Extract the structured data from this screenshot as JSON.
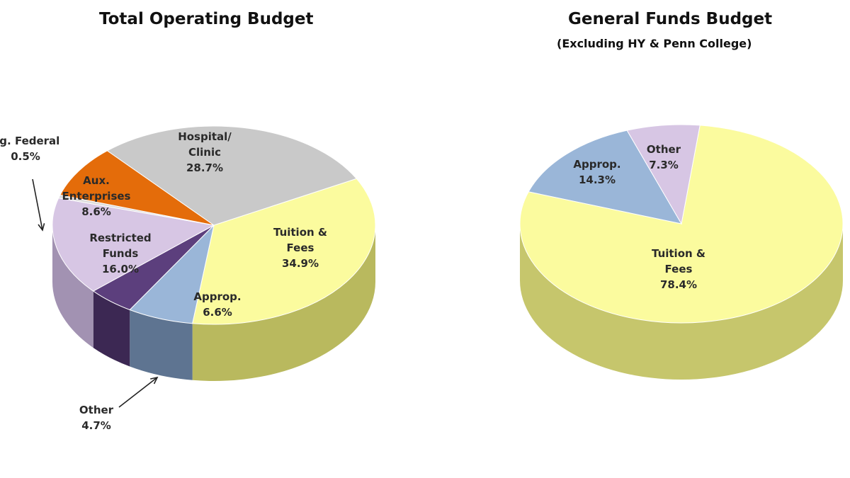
{
  "chart_data": [
    {
      "type": "pie",
      "title": "Total Operating Budget",
      "subtitle": "",
      "slices": [
        {
          "label": [
            "Tuition &",
            "Fees",
            "34.9%"
          ],
          "value": 34.9,
          "color": "#fbfb9e",
          "side": "#b9b95e"
        },
        {
          "label": [
            "Approp.",
            "6.6%"
          ],
          "value": 6.6,
          "color": "#9ab6d8",
          "side": "#5e7491"
        },
        {
          "label": [
            "Other",
            "4.7%"
          ],
          "value": 4.7,
          "color": "#5c3f7d",
          "side": "#3c2853"
        },
        {
          "label": [
            "Restricted",
            "Funds",
            "16.0%"
          ],
          "value": 16.0,
          "color": "#d7c6e4",
          "side": "#a292b2"
        },
        {
          "label": [
            "Ag. Federal",
            "0.5%"
          ],
          "value": 0.5,
          "color": "#dcdcdc",
          "side": "#a6a6a6"
        },
        {
          "label": [
            "Aux.",
            "Enterprises",
            "8.6%"
          ],
          "value": 8.6,
          "color": "#e46c0a",
          "side": "#a04908"
        },
        {
          "label": [
            "Hospital/",
            "Clinic",
            "28.7%"
          ],
          "value": 28.7,
          "color": "#c9c9c9",
          "side": "#8d8d8d"
        }
      ]
    },
    {
      "type": "pie",
      "title": "General Funds Budget",
      "subtitle": "(Excluding  HY & Penn College)",
      "slices": [
        {
          "label": [
            "Tuition &",
            "Fees",
            "78.4%"
          ],
          "value": 78.4,
          "color": "#fbfb9e",
          "side": "#c6c66c"
        },
        {
          "label": [
            "Approp.",
            "14.3%"
          ],
          "value": 14.3,
          "color": "#9ab6d8",
          "side": "#5e7491"
        },
        {
          "label": [
            "Other",
            "7.3%"
          ],
          "value": 7.3,
          "color": "#d7c6e4",
          "side": "#a292b2"
        }
      ]
    }
  ]
}
